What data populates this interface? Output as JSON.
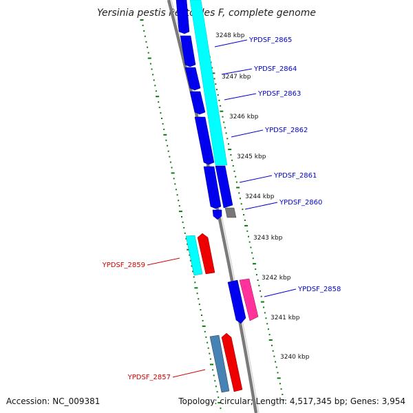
{
  "title": "Yersinia pestis Pestoides F, complete genome",
  "accession": "Accession: NC_009381",
  "summary": "Topology: circular; Length: 4,517,345 bp; Genes: 3,954",
  "colors": {
    "forward_gene": "#0000ee",
    "reverse_gene": "#ee0000",
    "forward_label": "#0000cc",
    "reverse_label": "#cc0000",
    "cds_forward": "#00ffff",
    "cds_other": "#ff3399",
    "steel": "#4682b4",
    "gray_gene": "#777777",
    "backbone": "#808080",
    "dots": "#0a7a0a"
  },
  "ticks": [
    {
      "label": "3248 kbp"
    },
    {
      "label": "3247 kbp"
    },
    {
      "label": "3246 kbp"
    },
    {
      "label": "3245 kbp"
    },
    {
      "label": "3244 kbp"
    },
    {
      "label": "3243 kbp"
    },
    {
      "label": "3242 kbp"
    },
    {
      "label": "3241 kbp"
    },
    {
      "label": "3240 kbp"
    }
  ],
  "genes": [
    {
      "name": "YPDSF_2865",
      "strand": "forward"
    },
    {
      "name": "YPDSF_2864",
      "strand": "forward"
    },
    {
      "name": "YPDSF_2863",
      "strand": "forward"
    },
    {
      "name": "YPDSF_2862",
      "strand": "forward"
    },
    {
      "name": "YPDSF_2861",
      "strand": "forward"
    },
    {
      "name": "YPDSF_2860",
      "strand": "forward"
    },
    {
      "name": "YPDSF_2859",
      "strand": "reverse"
    },
    {
      "name": "YPDSF_2858",
      "strand": "forward"
    },
    {
      "name": "YPDSF_2857",
      "strand": "reverse"
    }
  ]
}
